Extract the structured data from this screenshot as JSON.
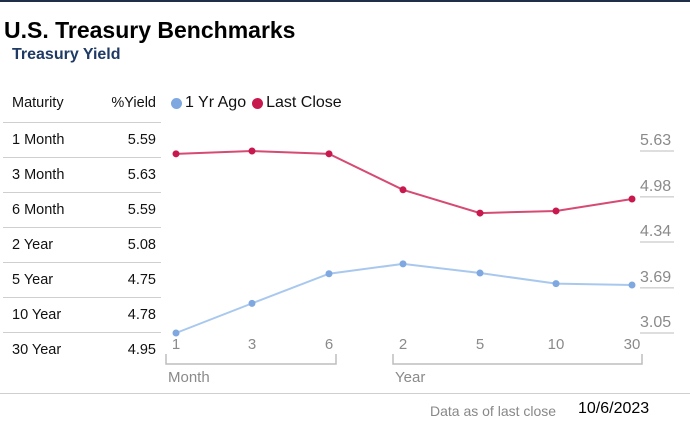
{
  "title": "U.S. Treasury Benchmarks",
  "subtitle": "Treasury Yield",
  "table": {
    "headers": [
      "Maturity",
      "%Yield"
    ],
    "rows": [
      [
        "1 Month",
        "5.59"
      ],
      [
        "3 Month",
        "5.63"
      ],
      [
        "6 Month",
        "5.59"
      ],
      [
        "2 Year",
        "5.08"
      ],
      [
        "5 Year",
        "4.75"
      ],
      [
        "10 Year",
        "4.78"
      ],
      [
        "30 Year",
        "4.95"
      ]
    ]
  },
  "footer": {
    "label": "Data as of last close",
    "date": "10/6/2023"
  },
  "chart_data": {
    "type": "line",
    "x": [
      "1",
      "3",
      "6",
      "2",
      "5",
      "10",
      "30"
    ],
    "groups": [
      {
        "label": "Month",
        "categories": [
          "1",
          "3",
          "6"
        ]
      },
      {
        "label": "Year",
        "categories": [
          "2",
          "5",
          "10",
          "30"
        ]
      }
    ],
    "y_ticks": [
      5.63,
      4.98,
      4.34,
      3.69,
      3.05
    ],
    "ylim": [
      3.05,
      5.63
    ],
    "series": [
      {
        "name": "1 Yr Ago",
        "color": "#a9c8ee",
        "marker_color": "#7fa8e0",
        "values": [
          3.05,
          3.47,
          3.89,
          4.03,
          3.9,
          3.75,
          3.73
        ]
      },
      {
        "name": "Last Close",
        "color": "#d64a73",
        "marker_color": "#c8194e",
        "values": [
          5.59,
          5.63,
          5.59,
          5.08,
          4.75,
          4.78,
          4.95
        ]
      }
    ],
    "legend_position": "top-left",
    "grid": false
  }
}
